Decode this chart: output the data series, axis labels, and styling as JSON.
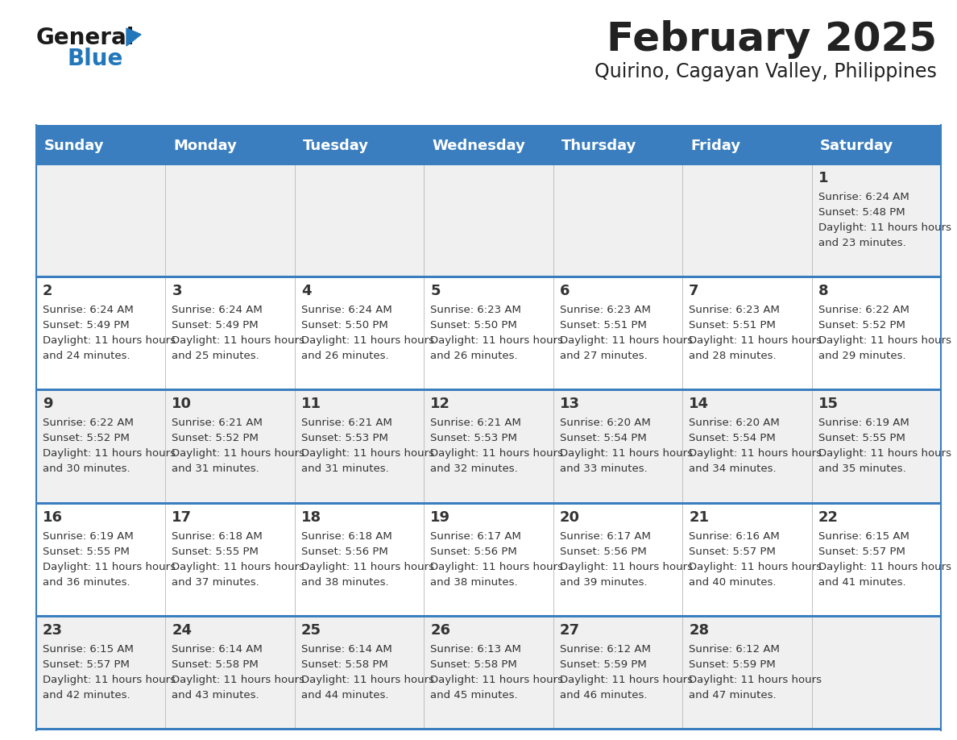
{
  "title": "February 2025",
  "subtitle": "Quirino, Cagayan Valley, Philippines",
  "days_of_week": [
    "Sunday",
    "Monday",
    "Tuesday",
    "Wednesday",
    "Thursday",
    "Friday",
    "Saturday"
  ],
  "header_bg": "#3a7ebf",
  "header_text_color": "#ffffff",
  "row_bg_odd": "#f0f0f0",
  "row_bg_even": "#ffffff",
  "separator_color": "#3a7ebf",
  "text_color": "#333333",
  "title_color": "#222222",
  "calendar": [
    [
      {
        "day": null,
        "sunrise": null,
        "sunset": null,
        "daylight": null
      },
      {
        "day": null,
        "sunrise": null,
        "sunset": null,
        "daylight": null
      },
      {
        "day": null,
        "sunrise": null,
        "sunset": null,
        "daylight": null
      },
      {
        "day": null,
        "sunrise": null,
        "sunset": null,
        "daylight": null
      },
      {
        "day": null,
        "sunrise": null,
        "sunset": null,
        "daylight": null
      },
      {
        "day": null,
        "sunrise": null,
        "sunset": null,
        "daylight": null
      },
      {
        "day": 1,
        "sunrise": "6:24 AM",
        "sunset": "5:48 PM",
        "daylight": "11 hours and 23 minutes."
      }
    ],
    [
      {
        "day": 2,
        "sunrise": "6:24 AM",
        "sunset": "5:49 PM",
        "daylight": "11 hours and 24 minutes."
      },
      {
        "day": 3,
        "sunrise": "6:24 AM",
        "sunset": "5:49 PM",
        "daylight": "11 hours and 25 minutes."
      },
      {
        "day": 4,
        "sunrise": "6:24 AM",
        "sunset": "5:50 PM",
        "daylight": "11 hours and 26 minutes."
      },
      {
        "day": 5,
        "sunrise": "6:23 AM",
        "sunset": "5:50 PM",
        "daylight": "11 hours and 26 minutes."
      },
      {
        "day": 6,
        "sunrise": "6:23 AM",
        "sunset": "5:51 PM",
        "daylight": "11 hours and 27 minutes."
      },
      {
        "day": 7,
        "sunrise": "6:23 AM",
        "sunset": "5:51 PM",
        "daylight": "11 hours and 28 minutes."
      },
      {
        "day": 8,
        "sunrise": "6:22 AM",
        "sunset": "5:52 PM",
        "daylight": "11 hours and 29 minutes."
      }
    ],
    [
      {
        "day": 9,
        "sunrise": "6:22 AM",
        "sunset": "5:52 PM",
        "daylight": "11 hours and 30 minutes."
      },
      {
        "day": 10,
        "sunrise": "6:21 AM",
        "sunset": "5:52 PM",
        "daylight": "11 hours and 31 minutes."
      },
      {
        "day": 11,
        "sunrise": "6:21 AM",
        "sunset": "5:53 PM",
        "daylight": "11 hours and 31 minutes."
      },
      {
        "day": 12,
        "sunrise": "6:21 AM",
        "sunset": "5:53 PM",
        "daylight": "11 hours and 32 minutes."
      },
      {
        "day": 13,
        "sunrise": "6:20 AM",
        "sunset": "5:54 PM",
        "daylight": "11 hours and 33 minutes."
      },
      {
        "day": 14,
        "sunrise": "6:20 AM",
        "sunset": "5:54 PM",
        "daylight": "11 hours and 34 minutes."
      },
      {
        "day": 15,
        "sunrise": "6:19 AM",
        "sunset": "5:55 PM",
        "daylight": "11 hours and 35 minutes."
      }
    ],
    [
      {
        "day": 16,
        "sunrise": "6:19 AM",
        "sunset": "5:55 PM",
        "daylight": "11 hours and 36 minutes."
      },
      {
        "day": 17,
        "sunrise": "6:18 AM",
        "sunset": "5:55 PM",
        "daylight": "11 hours and 37 minutes."
      },
      {
        "day": 18,
        "sunrise": "6:18 AM",
        "sunset": "5:56 PM",
        "daylight": "11 hours and 38 minutes."
      },
      {
        "day": 19,
        "sunrise": "6:17 AM",
        "sunset": "5:56 PM",
        "daylight": "11 hours and 38 minutes."
      },
      {
        "day": 20,
        "sunrise": "6:17 AM",
        "sunset": "5:56 PM",
        "daylight": "11 hours and 39 minutes."
      },
      {
        "day": 21,
        "sunrise": "6:16 AM",
        "sunset": "5:57 PM",
        "daylight": "11 hours and 40 minutes."
      },
      {
        "day": 22,
        "sunrise": "6:15 AM",
        "sunset": "5:57 PM",
        "daylight": "11 hours and 41 minutes."
      }
    ],
    [
      {
        "day": 23,
        "sunrise": "6:15 AM",
        "sunset": "5:57 PM",
        "daylight": "11 hours and 42 minutes."
      },
      {
        "day": 24,
        "sunrise": "6:14 AM",
        "sunset": "5:58 PM",
        "daylight": "11 hours and 43 minutes."
      },
      {
        "day": 25,
        "sunrise": "6:14 AM",
        "sunset": "5:58 PM",
        "daylight": "11 hours and 44 minutes."
      },
      {
        "day": 26,
        "sunrise": "6:13 AM",
        "sunset": "5:58 PM",
        "daylight": "11 hours and 45 minutes."
      },
      {
        "day": 27,
        "sunrise": "6:12 AM",
        "sunset": "5:59 PM",
        "daylight": "11 hours and 46 minutes."
      },
      {
        "day": 28,
        "sunrise": "6:12 AM",
        "sunset": "5:59 PM",
        "daylight": "11 hours and 47 minutes."
      },
      {
        "day": null,
        "sunrise": null,
        "sunset": null,
        "daylight": null
      }
    ]
  ],
  "logo_text_general": "General",
  "logo_text_blue": "Blue",
  "logo_color_general": "#1a1a1a",
  "logo_color_blue": "#2277bb",
  "logo_triangle_color": "#2277bb"
}
